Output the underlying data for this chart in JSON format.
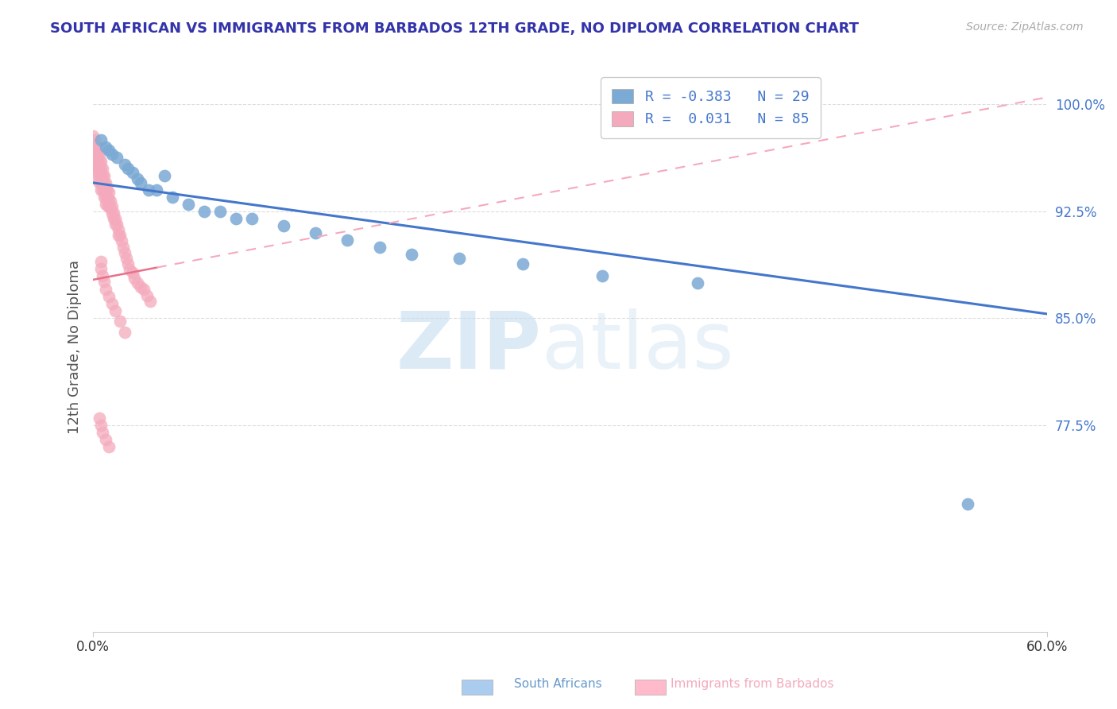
{
  "title": "SOUTH AFRICAN VS IMMIGRANTS FROM BARBADOS 12TH GRADE, NO DIPLOMA CORRELATION CHART",
  "source": "Source: ZipAtlas.com",
  "ylabel": "12th Grade, No Diploma",
  "xlim": [
    0.0,
    0.6
  ],
  "ylim": [
    0.63,
    1.03
  ],
  "ytick_positions": [
    0.775,
    0.85,
    0.925,
    1.0
  ],
  "ytick_labels": [
    "77.5%",
    "85.0%",
    "92.5%",
    "100.0%"
  ],
  "legend_blue_r": "R = -0.383",
  "legend_blue_n": "N = 29",
  "legend_pink_r": "R =  0.031",
  "legend_pink_n": "N = 85",
  "blue_scatter_color": "#7BAAD4",
  "pink_scatter_color": "#F4AABC",
  "blue_line_color": "#4477CC",
  "pink_line_color": "#E8708A",
  "pink_dashed_color": "#F4AABC",
  "legend_label_south": "South Africans",
  "legend_label_barbados": "Immigrants from Barbados",
  "watermark_zip": "ZIP",
  "watermark_atlas": "atlas",
  "background_color": "#FFFFFF",
  "grid_color": "#DDDDDD",
  "blue_line_x": [
    0.0,
    0.6
  ],
  "blue_line_y": [
    0.945,
    0.853
  ],
  "pink_line_x": [
    0.0,
    0.6
  ],
  "pink_line_y": [
    0.877,
    1.005
  ],
  "blue_x": [
    0.005,
    0.008,
    0.01,
    0.012,
    0.015,
    0.02,
    0.022,
    0.025,
    0.028,
    0.03,
    0.035,
    0.04,
    0.045,
    0.05,
    0.06,
    0.07,
    0.08,
    0.09,
    0.1,
    0.12,
    0.14,
    0.16,
    0.18,
    0.2,
    0.23,
    0.27,
    0.32,
    0.38,
    0.55
  ],
  "blue_y": [
    0.975,
    0.97,
    0.968,
    0.965,
    0.963,
    0.958,
    0.955,
    0.952,
    0.948,
    0.945,
    0.94,
    0.94,
    0.95,
    0.935,
    0.93,
    0.925,
    0.925,
    0.92,
    0.92,
    0.915,
    0.91,
    0.905,
    0.9,
    0.895,
    0.892,
    0.888,
    0.88,
    0.875,
    0.72
  ],
  "pink_x": [
    0.0,
    0.0,
    0.0,
    0.001,
    0.001,
    0.001,
    0.002,
    0.002,
    0.002,
    0.002,
    0.003,
    0.003,
    0.003,
    0.003,
    0.003,
    0.003,
    0.003,
    0.004,
    0.004,
    0.004,
    0.004,
    0.004,
    0.005,
    0.005,
    0.005,
    0.005,
    0.005,
    0.006,
    0.006,
    0.006,
    0.006,
    0.007,
    0.007,
    0.007,
    0.007,
    0.008,
    0.008,
    0.008,
    0.008,
    0.009,
    0.009,
    0.009,
    0.01,
    0.01,
    0.01,
    0.011,
    0.011,
    0.012,
    0.012,
    0.013,
    0.013,
    0.014,
    0.014,
    0.015,
    0.016,
    0.016,
    0.017,
    0.018,
    0.019,
    0.02,
    0.021,
    0.022,
    0.023,
    0.025,
    0.026,
    0.028,
    0.03,
    0.032,
    0.034,
    0.036,
    0.005,
    0.005,
    0.006,
    0.007,
    0.008,
    0.01,
    0.012,
    0.014,
    0.017,
    0.02,
    0.004,
    0.005,
    0.006,
    0.008,
    0.01
  ],
  "pink_y": [
    0.978,
    0.972,
    0.968,
    0.975,
    0.97,
    0.965,
    0.97,
    0.965,
    0.96,
    0.955,
    0.97,
    0.965,
    0.962,
    0.958,
    0.955,
    0.952,
    0.948,
    0.965,
    0.96,
    0.955,
    0.95,
    0.945,
    0.96,
    0.955,
    0.95,
    0.945,
    0.94,
    0.955,
    0.95,
    0.945,
    0.94,
    0.95,
    0.945,
    0.94,
    0.935,
    0.945,
    0.94,
    0.935,
    0.93,
    0.94,
    0.935,
    0.93,
    0.938,
    0.933,
    0.928,
    0.932,
    0.927,
    0.928,
    0.923,
    0.924,
    0.92,
    0.92,
    0.916,
    0.916,
    0.912,
    0.908,
    0.908,
    0.904,
    0.9,
    0.896,
    0.892,
    0.888,
    0.884,
    0.882,
    0.878,
    0.875,
    0.872,
    0.87,
    0.866,
    0.862,
    0.89,
    0.885,
    0.88,
    0.876,
    0.87,
    0.865,
    0.86,
    0.855,
    0.848,
    0.84,
    0.78,
    0.775,
    0.77,
    0.765,
    0.76
  ]
}
